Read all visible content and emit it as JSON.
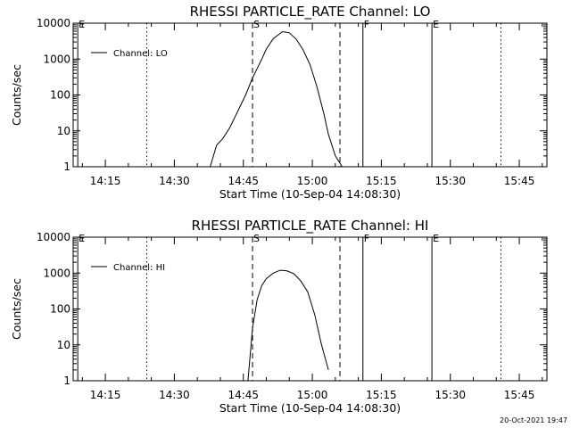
{
  "footer": {
    "timestamp": "20-Oct-2021 19:47"
  },
  "chart_data": [
    {
      "type": "line",
      "title": "RHESSI PARTICLE_RATE Channel: LO",
      "xlabel": "Start Time (10-Sep-04 14:08:30)",
      "ylabel": "Counts/sec",
      "yscale": "log",
      "ylim": [
        1,
        10000
      ],
      "xlim": [
        "14:08",
        "15:51"
      ],
      "xtick_labels": [
        "14:15",
        "14:30",
        "14:45",
        "15:00",
        "15:15",
        "15:30",
        "15:45"
      ],
      "ytick_labels": [
        "1",
        "10",
        "100",
        "1000",
        "10000"
      ],
      "legend": {
        "position": "top-left",
        "entries": [
          "Channel: LO"
        ]
      },
      "vlines": [
        {
          "time": "14:09",
          "style": "solid",
          "label": "E"
        },
        {
          "time": "14:24",
          "style": "dotted",
          "label": ""
        },
        {
          "time": "14:47",
          "style": "dashed",
          "label": "S"
        },
        {
          "time": "15:06",
          "style": "dashed",
          "label": ""
        },
        {
          "time": "15:11",
          "style": "solid",
          "label": "F"
        },
        {
          "time": "15:26",
          "style": "solid",
          "label": "E"
        },
        {
          "time": "15:41",
          "style": "dotted",
          "label": ""
        }
      ],
      "series": [
        {
          "name": "Channel: LO",
          "x": [
            "14:37:48",
            "14:39:12",
            "14:40:30",
            "14:42:00",
            "14:44:00",
            "14:45:30",
            "14:47:00",
            "14:49:00",
            "14:50:00",
            "14:51:30",
            "14:53:30",
            "14:55:00",
            "14:56:30",
            "14:58:00",
            "14:59:30",
            "15:01:00",
            "15:02:30",
            "15:03:30",
            "15:05:00",
            "15:06:30"
          ],
          "y": [
            1,
            4,
            6,
            12,
            40,
            100,
            300,
            1000,
            1900,
            3700,
            5800,
            5400,
            3600,
            1800,
            700,
            170,
            30,
            8,
            2,
            1
          ]
        }
      ]
    },
    {
      "type": "line",
      "title": "RHESSI PARTICLE_RATE Channel: HI",
      "xlabel": "Start Time (10-Sep-04 14:08:30)",
      "ylabel": "Counts/sec",
      "yscale": "log",
      "ylim": [
        1,
        10000
      ],
      "xlim": [
        "14:08",
        "15:51"
      ],
      "xtick_labels": [
        "14:15",
        "14:30",
        "14:45",
        "15:00",
        "15:15",
        "15:30",
        "15:45"
      ],
      "ytick_labels": [
        "1",
        "10",
        "100",
        "1000",
        "10000"
      ],
      "legend": {
        "position": "top-left",
        "entries": [
          "Channel: HI"
        ]
      },
      "vlines": [
        {
          "time": "14:09",
          "style": "solid",
          "label": "E"
        },
        {
          "time": "14:24",
          "style": "dotted",
          "label": ""
        },
        {
          "time": "14:47",
          "style": "dashed",
          "label": "S"
        },
        {
          "time": "15:06",
          "style": "dashed",
          "label": ""
        },
        {
          "time": "15:11",
          "style": "solid",
          "label": "F"
        },
        {
          "time": "15:26",
          "style": "solid",
          "label": "E"
        },
        {
          "time": "15:41",
          "style": "dotted",
          "label": ""
        }
      ],
      "series": [
        {
          "name": "Channel: HI",
          "x": [
            "14:46:00",
            "14:47:00",
            "14:48:00",
            "14:49:00",
            "14:50:00",
            "14:51:30",
            "14:53:00",
            "14:54:30",
            "14:56:00",
            "14:57:30",
            "14:59:00",
            "15:00:30",
            "15:02:00",
            "15:03:30"
          ],
          "y": [
            1,
            30,
            180,
            450,
            700,
            1000,
            1200,
            1150,
            950,
            600,
            300,
            70,
            10,
            2
          ]
        }
      ]
    }
  ]
}
